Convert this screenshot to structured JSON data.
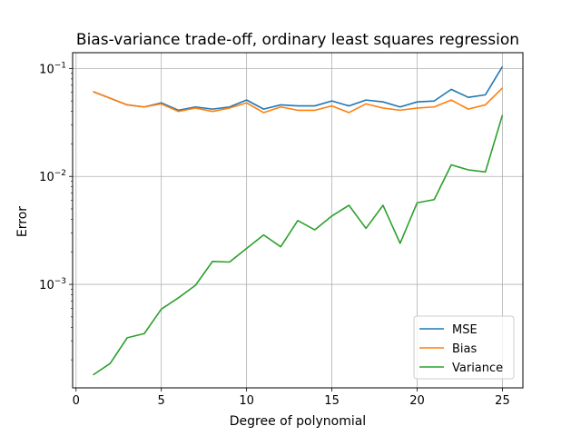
{
  "chart_data": {
    "type": "line",
    "title": "Bias-variance trade-off, ordinary least squares regression",
    "xlabel": "Degree of polynomial",
    "ylabel": "Error",
    "yscale": "log",
    "xlim": [
      -0.2,
      26.2
    ],
    "ylim": [
      0.00011,
      0.14
    ],
    "grid": true,
    "legend_position": "lower-right",
    "x_ticks": [
      0,
      5,
      10,
      15,
      20,
      25
    ],
    "x_tick_labels": [
      "0",
      "5",
      "10",
      "15",
      "20",
      "25"
    ],
    "y_ticks": [
      0.001,
      0.01,
      0.1
    ],
    "y_tick_labels": [
      {
        "base": "10",
        "exp": "−3"
      },
      {
        "base": "10",
        "exp": "−2"
      },
      {
        "base": "10",
        "exp": "−1"
      }
    ],
    "x": [
      1,
      2,
      3,
      4,
      5,
      6,
      7,
      8,
      9,
      10,
      11,
      12,
      13,
      14,
      15,
      16,
      17,
      18,
      19,
      20,
      21,
      22,
      23,
      24,
      25
    ],
    "series": [
      {
        "name": "MSE",
        "color": "#1f77b4",
        "values": [
          0.061,
          0.053,
          0.046,
          0.044,
          0.048,
          0.041,
          0.044,
          0.042,
          0.044,
          0.051,
          0.042,
          0.046,
          0.045,
          0.045,
          0.05,
          0.045,
          0.051,
          0.049,
          0.044,
          0.049,
          0.05,
          0.064,
          0.054,
          0.057,
          0.104
        ]
      },
      {
        "name": "Bias",
        "color": "#ff7f0e",
        "values": [
          0.061,
          0.053,
          0.046,
          0.044,
          0.047,
          0.04,
          0.043,
          0.04,
          0.043,
          0.048,
          0.039,
          0.044,
          0.041,
          0.041,
          0.045,
          0.039,
          0.047,
          0.043,
          0.041,
          0.043,
          0.044,
          0.051,
          0.042,
          0.046,
          0.066
        ]
      },
      {
        "name": "Variance",
        "color": "#2ca02c",
        "values": [
          0.000145,
          0.000185,
          0.00032,
          0.00035,
          0.00059,
          0.00075,
          0.00098,
          0.00163,
          0.00161,
          0.00215,
          0.00287,
          0.00223,
          0.0039,
          0.0032,
          0.0043,
          0.0054,
          0.0033,
          0.0054,
          0.0024,
          0.0057,
          0.0061,
          0.0128,
          0.0115,
          0.011,
          0.037
        ]
      }
    ]
  }
}
